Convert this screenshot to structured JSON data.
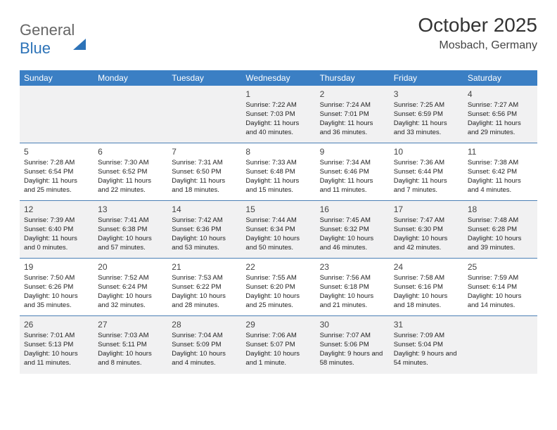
{
  "logo": {
    "part1": "General",
    "part2": "Blue"
  },
  "title": "October 2025",
  "subtitle": "Mosbach, Germany",
  "colors": {
    "header_bg": "#3b7fc4",
    "row_border": "#4a7fb5",
    "shade_bg": "#f1f1f2",
    "page_bg": "#ffffff"
  },
  "day_names": [
    "Sunday",
    "Monday",
    "Tuesday",
    "Wednesday",
    "Thursday",
    "Friday",
    "Saturday"
  ],
  "weeks": [
    [
      {
        "n": "",
        "rise": "",
        "set": "",
        "dl": ""
      },
      {
        "n": "",
        "rise": "",
        "set": "",
        "dl": ""
      },
      {
        "n": "",
        "rise": "",
        "set": "",
        "dl": ""
      },
      {
        "n": "1",
        "rise": "Sunrise: 7:22 AM",
        "set": "Sunset: 7:03 PM",
        "dl": "Daylight: 11 hours and 40 minutes."
      },
      {
        "n": "2",
        "rise": "Sunrise: 7:24 AM",
        "set": "Sunset: 7:01 PM",
        "dl": "Daylight: 11 hours and 36 minutes."
      },
      {
        "n": "3",
        "rise": "Sunrise: 7:25 AM",
        "set": "Sunset: 6:59 PM",
        "dl": "Daylight: 11 hours and 33 minutes."
      },
      {
        "n": "4",
        "rise": "Sunrise: 7:27 AM",
        "set": "Sunset: 6:56 PM",
        "dl": "Daylight: 11 hours and 29 minutes."
      }
    ],
    [
      {
        "n": "5",
        "rise": "Sunrise: 7:28 AM",
        "set": "Sunset: 6:54 PM",
        "dl": "Daylight: 11 hours and 25 minutes."
      },
      {
        "n": "6",
        "rise": "Sunrise: 7:30 AM",
        "set": "Sunset: 6:52 PM",
        "dl": "Daylight: 11 hours and 22 minutes."
      },
      {
        "n": "7",
        "rise": "Sunrise: 7:31 AM",
        "set": "Sunset: 6:50 PM",
        "dl": "Daylight: 11 hours and 18 minutes."
      },
      {
        "n": "8",
        "rise": "Sunrise: 7:33 AM",
        "set": "Sunset: 6:48 PM",
        "dl": "Daylight: 11 hours and 15 minutes."
      },
      {
        "n": "9",
        "rise": "Sunrise: 7:34 AM",
        "set": "Sunset: 6:46 PM",
        "dl": "Daylight: 11 hours and 11 minutes."
      },
      {
        "n": "10",
        "rise": "Sunrise: 7:36 AM",
        "set": "Sunset: 6:44 PM",
        "dl": "Daylight: 11 hours and 7 minutes."
      },
      {
        "n": "11",
        "rise": "Sunrise: 7:38 AM",
        "set": "Sunset: 6:42 PM",
        "dl": "Daylight: 11 hours and 4 minutes."
      }
    ],
    [
      {
        "n": "12",
        "rise": "Sunrise: 7:39 AM",
        "set": "Sunset: 6:40 PM",
        "dl": "Daylight: 11 hours and 0 minutes."
      },
      {
        "n": "13",
        "rise": "Sunrise: 7:41 AM",
        "set": "Sunset: 6:38 PM",
        "dl": "Daylight: 10 hours and 57 minutes."
      },
      {
        "n": "14",
        "rise": "Sunrise: 7:42 AM",
        "set": "Sunset: 6:36 PM",
        "dl": "Daylight: 10 hours and 53 minutes."
      },
      {
        "n": "15",
        "rise": "Sunrise: 7:44 AM",
        "set": "Sunset: 6:34 PM",
        "dl": "Daylight: 10 hours and 50 minutes."
      },
      {
        "n": "16",
        "rise": "Sunrise: 7:45 AM",
        "set": "Sunset: 6:32 PM",
        "dl": "Daylight: 10 hours and 46 minutes."
      },
      {
        "n": "17",
        "rise": "Sunrise: 7:47 AM",
        "set": "Sunset: 6:30 PM",
        "dl": "Daylight: 10 hours and 42 minutes."
      },
      {
        "n": "18",
        "rise": "Sunrise: 7:48 AM",
        "set": "Sunset: 6:28 PM",
        "dl": "Daylight: 10 hours and 39 minutes."
      }
    ],
    [
      {
        "n": "19",
        "rise": "Sunrise: 7:50 AM",
        "set": "Sunset: 6:26 PM",
        "dl": "Daylight: 10 hours and 35 minutes."
      },
      {
        "n": "20",
        "rise": "Sunrise: 7:52 AM",
        "set": "Sunset: 6:24 PM",
        "dl": "Daylight: 10 hours and 32 minutes."
      },
      {
        "n": "21",
        "rise": "Sunrise: 7:53 AM",
        "set": "Sunset: 6:22 PM",
        "dl": "Daylight: 10 hours and 28 minutes."
      },
      {
        "n": "22",
        "rise": "Sunrise: 7:55 AM",
        "set": "Sunset: 6:20 PM",
        "dl": "Daylight: 10 hours and 25 minutes."
      },
      {
        "n": "23",
        "rise": "Sunrise: 7:56 AM",
        "set": "Sunset: 6:18 PM",
        "dl": "Daylight: 10 hours and 21 minutes."
      },
      {
        "n": "24",
        "rise": "Sunrise: 7:58 AM",
        "set": "Sunset: 6:16 PM",
        "dl": "Daylight: 10 hours and 18 minutes."
      },
      {
        "n": "25",
        "rise": "Sunrise: 7:59 AM",
        "set": "Sunset: 6:14 PM",
        "dl": "Daylight: 10 hours and 14 minutes."
      }
    ],
    [
      {
        "n": "26",
        "rise": "Sunrise: 7:01 AM",
        "set": "Sunset: 5:13 PM",
        "dl": "Daylight: 10 hours and 11 minutes."
      },
      {
        "n": "27",
        "rise": "Sunrise: 7:03 AM",
        "set": "Sunset: 5:11 PM",
        "dl": "Daylight: 10 hours and 8 minutes."
      },
      {
        "n": "28",
        "rise": "Sunrise: 7:04 AM",
        "set": "Sunset: 5:09 PM",
        "dl": "Daylight: 10 hours and 4 minutes."
      },
      {
        "n": "29",
        "rise": "Sunrise: 7:06 AM",
        "set": "Sunset: 5:07 PM",
        "dl": "Daylight: 10 hours and 1 minute."
      },
      {
        "n": "30",
        "rise": "Sunrise: 7:07 AM",
        "set": "Sunset: 5:06 PM",
        "dl": "Daylight: 9 hours and 58 minutes."
      },
      {
        "n": "31",
        "rise": "Sunrise: 7:09 AM",
        "set": "Sunset: 5:04 PM",
        "dl": "Daylight: 9 hours and 54 minutes."
      },
      {
        "n": "",
        "rise": "",
        "set": "",
        "dl": ""
      }
    ]
  ]
}
